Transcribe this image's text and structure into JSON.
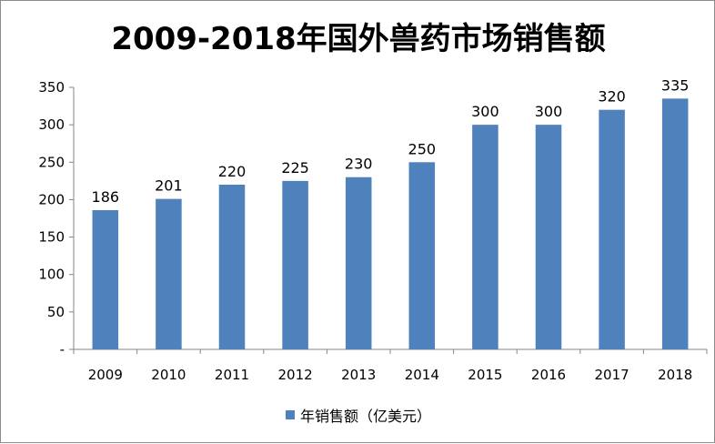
{
  "chart_data": {
    "type": "bar",
    "title": "2009-2018年国外兽药市场销售额",
    "xlabel": "",
    "ylabel": "",
    "categories": [
      "2009",
      "2010",
      "2011",
      "2012",
      "2013",
      "2014",
      "2015",
      "2016",
      "2017",
      "2018"
    ],
    "series": [
      {
        "name": "年销售额（亿美元）",
        "values": [
          186,
          201,
          220,
          225,
          230,
          250,
          300,
          300,
          320,
          335
        ],
        "color": "#4f81bd"
      }
    ],
    "ylim": [
      0,
      350
    ],
    "yticks": [
      0,
      50,
      100,
      150,
      200,
      250,
      300,
      350
    ],
    "ytick_labels": [
      "-",
      "50",
      "100",
      "150",
      "200",
      "250",
      "300",
      "350"
    ],
    "grid": false,
    "legend_position": "bottom",
    "data_labels": true
  }
}
